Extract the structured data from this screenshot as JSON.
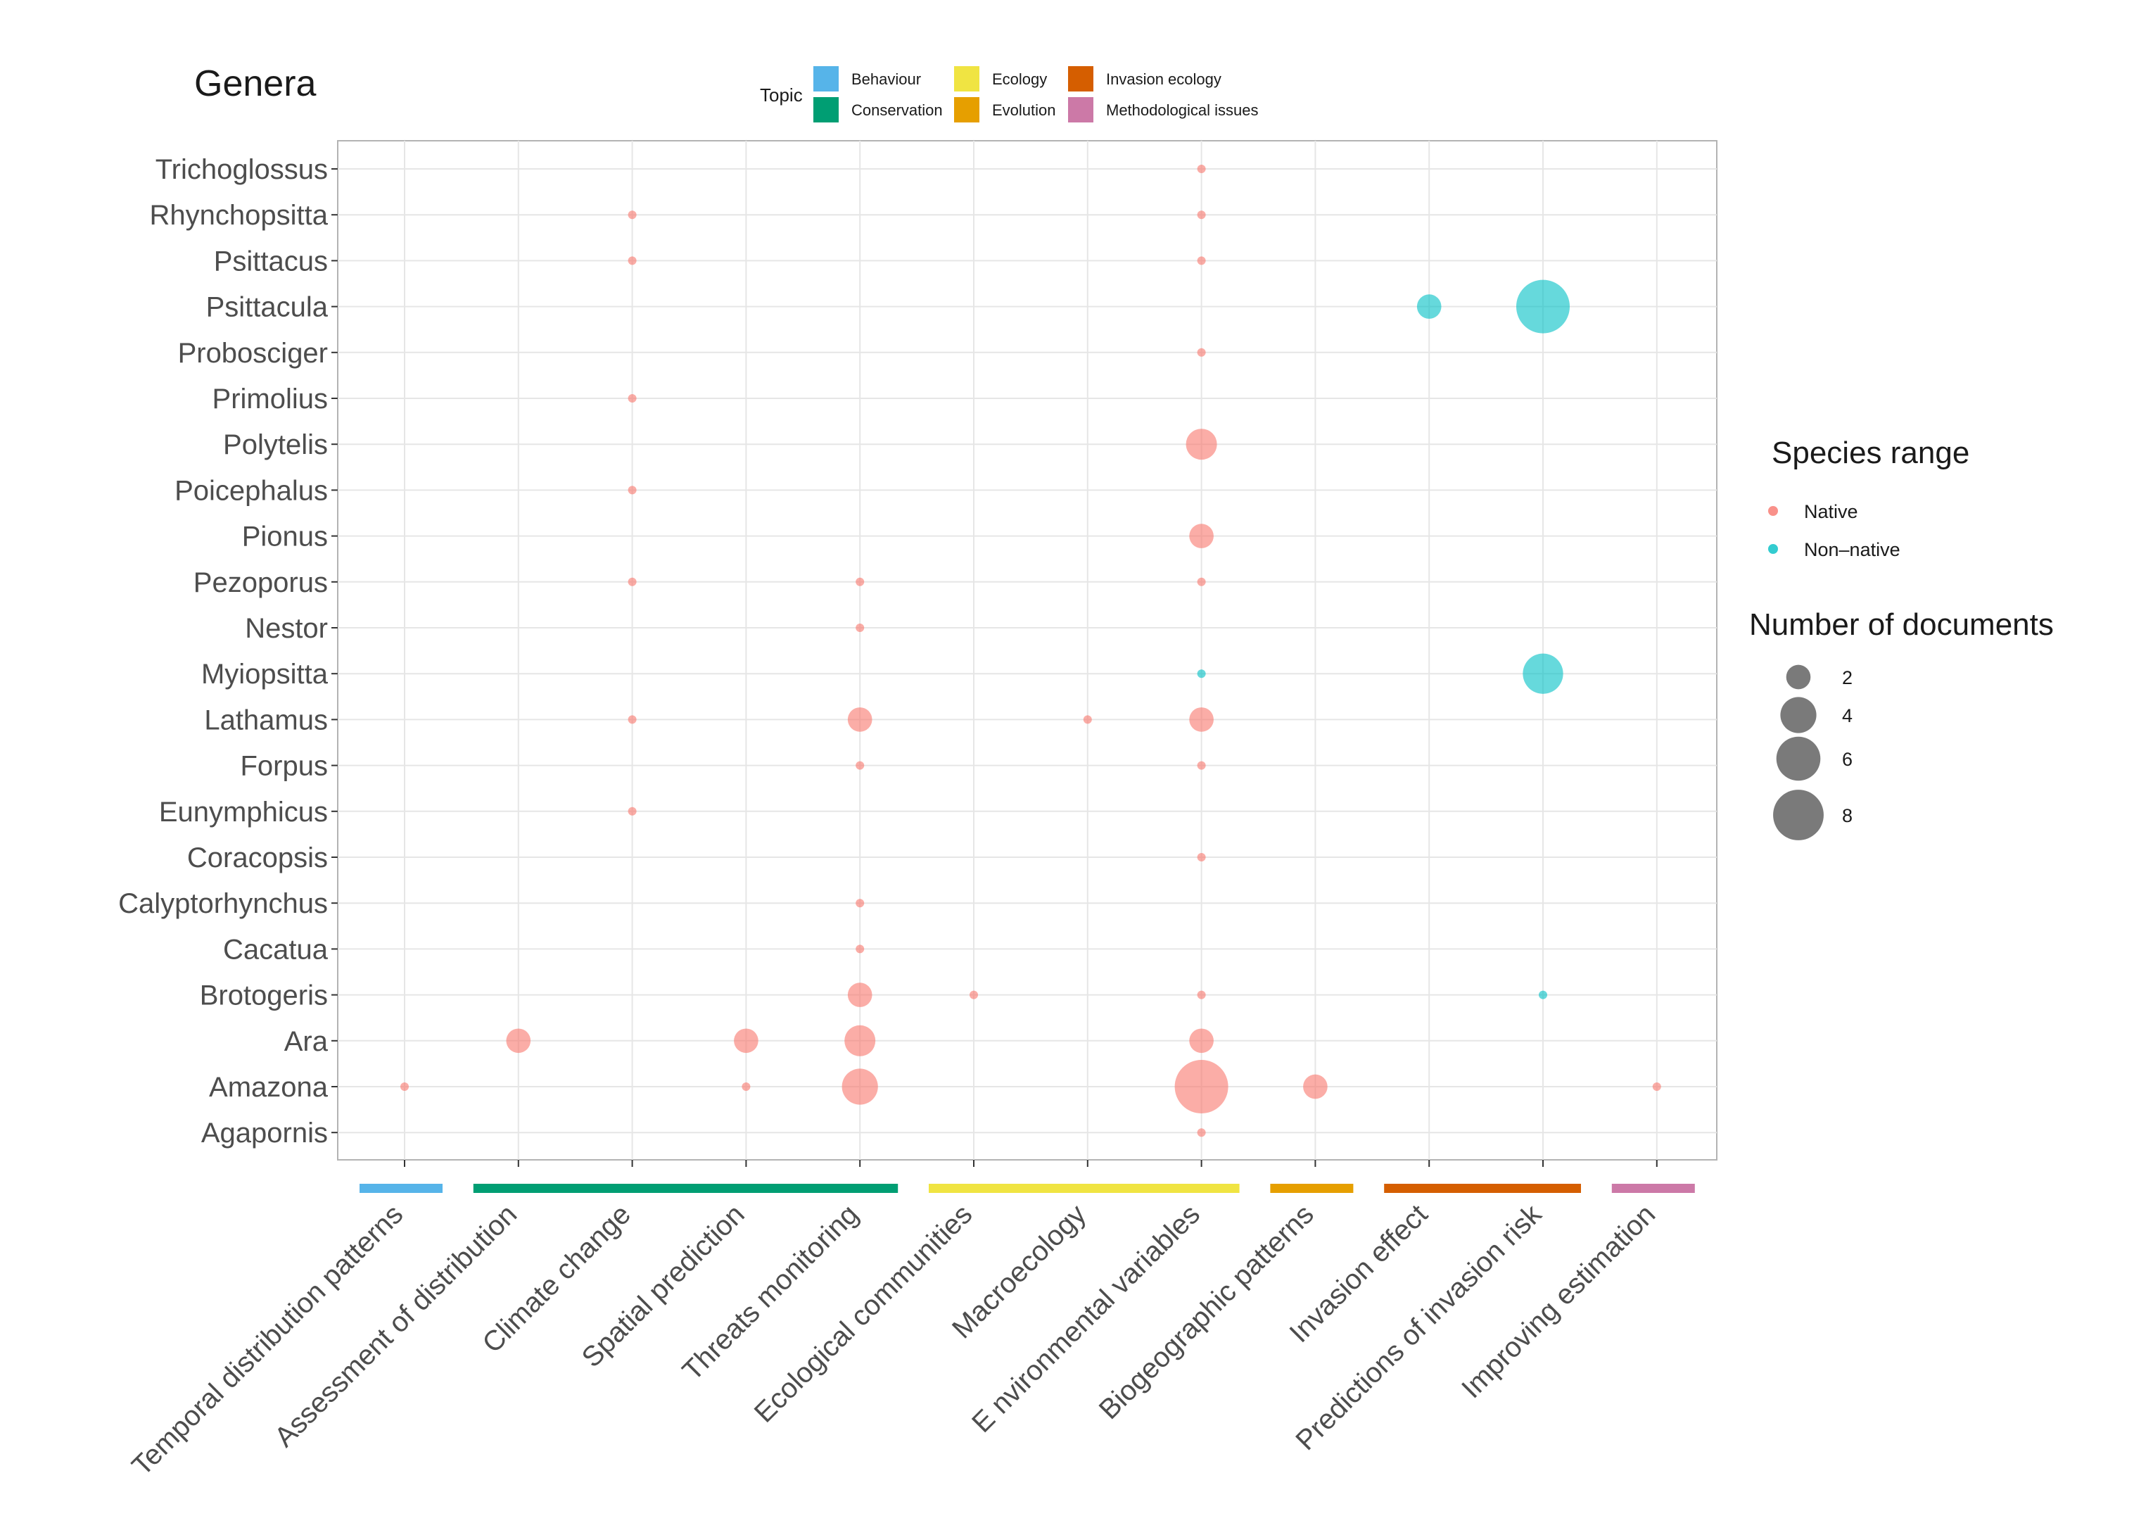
{
  "chart_data": {
    "type": "scatter",
    "y_title": "Genera",
    "genera": [
      "Trichoglossus",
      "Rhynchopsitta",
      "Psittacus",
      "Psittacula",
      "Probosciger",
      "Primolius",
      "Polytelis",
      "Poicephalus",
      "Pionus",
      "Pezoporus",
      "Nestor",
      "Myiopsitta",
      "Lathamus",
      "Forpus",
      "Eunymphicus",
      "Coracopsis",
      "Calyptorhynchus",
      "Cacatua",
      "Brotogeris",
      "Ara",
      "Amazona",
      "Agapornis"
    ],
    "categories": [
      "Temporal distribution patterns",
      "Assessment of distribution",
      "Climate change",
      "Spatial prediction",
      "Threats monitoring",
      "Ecological communities",
      "Macroecology",
      "Environmental variables",
      "Biogeographic patterns",
      "Invasion effect",
      "Predictions of invasion risk",
      "Improving estimation"
    ],
    "category_labels_display": [
      "Temporal distribution patterns",
      "Assessment of distribution",
      "Climate change",
      "Spatial prediction",
      "Threats monitoring",
      "Ecological communities",
      "Macroecology",
      "E nvironmental variables",
      "Biogeographic patterns",
      "Invasion effect",
      "Predictions of invasion risk",
      "Improving estimation"
    ],
    "topics": [
      {
        "name": "Behaviour",
        "color": "#56B4E9",
        "from": 0,
        "to": 0
      },
      {
        "name": "Conservation",
        "color": "#009E73",
        "from": 1,
        "to": 4
      },
      {
        "name": "Ecology",
        "color": "#F0E442",
        "from": 5,
        "to": 7
      },
      {
        "name": "Evolution",
        "color": "#E69F00",
        "from": 8,
        "to": 8
      },
      {
        "name": "Invasion ecology",
        "color": "#D55E00",
        "from": 9,
        "to": 10
      },
      {
        "name": "Methodological issues",
        "color": "#CC79A7",
        "from": 11,
        "to": 11
      }
    ],
    "topic_legend_title": "Topic",
    "topic_legend_order": [
      "Behaviour",
      "Ecology",
      "Invasion ecology",
      "Conservation",
      "Evolution",
      "Methodological issues"
    ],
    "range_legend": {
      "title": "Species range",
      "items": [
        {
          "label": "Native",
          "color": "#F8766D"
        },
        {
          "label": "Non–native",
          "color": "#00BFC4"
        }
      ]
    },
    "size_legend": {
      "title": "Number of documents",
      "values": [
        2,
        4,
        6,
        8
      ]
    },
    "points": [
      {
        "genus": "Trichoglossus",
        "category": "Environmental variables",
        "range": "Native",
        "count": 1
      },
      {
        "genus": "Rhynchopsitta",
        "category": "Climate change",
        "range": "Native",
        "count": 1
      },
      {
        "genus": "Rhynchopsitta",
        "category": "Environmental variables",
        "range": "Native",
        "count": 1
      },
      {
        "genus": "Psittacus",
        "category": "Climate change",
        "range": "Native",
        "count": 1
      },
      {
        "genus": "Psittacus",
        "category": "Environmental variables",
        "range": "Native",
        "count": 1
      },
      {
        "genus": "Psittacula",
        "category": "Invasion effect",
        "range": "Non-native",
        "count": 2
      },
      {
        "genus": "Psittacula",
        "category": "Predictions of invasion risk",
        "range": "Non-native",
        "count": 9
      },
      {
        "genus": "Probosciger",
        "category": "Environmental variables",
        "range": "Native",
        "count": 1
      },
      {
        "genus": "Primolius",
        "category": "Climate change",
        "range": "Native",
        "count": 1
      },
      {
        "genus": "Polytelis",
        "category": "Environmental variables",
        "range": "Native",
        "count": 3
      },
      {
        "genus": "Poicephalus",
        "category": "Climate change",
        "range": "Native",
        "count": 1
      },
      {
        "genus": "Pionus",
        "category": "Environmental variables",
        "range": "Native",
        "count": 2
      },
      {
        "genus": "Pezoporus",
        "category": "Climate change",
        "range": "Native",
        "count": 1
      },
      {
        "genus": "Pezoporus",
        "category": "Threats monitoring",
        "range": "Native",
        "count": 1
      },
      {
        "genus": "Pezoporus",
        "category": "Environmental variables",
        "range": "Native",
        "count": 1
      },
      {
        "genus": "Nestor",
        "category": "Threats monitoring",
        "range": "Native",
        "count": 1
      },
      {
        "genus": "Myiopsitta",
        "category": "Environmental variables",
        "range": "Non-native",
        "count": 1
      },
      {
        "genus": "Myiopsitta",
        "category": "Predictions of invasion risk",
        "range": "Non-native",
        "count": 5
      },
      {
        "genus": "Lathamus",
        "category": "Climate change",
        "range": "Native",
        "count": 1
      },
      {
        "genus": "Lathamus",
        "category": "Threats monitoring",
        "range": "Native",
        "count": 2
      },
      {
        "genus": "Lathamus",
        "category": "Macroecology",
        "range": "Native",
        "count": 1
      },
      {
        "genus": "Lathamus",
        "category": "Environmental variables",
        "range": "Native",
        "count": 2
      },
      {
        "genus": "Forpus",
        "category": "Threats monitoring",
        "range": "Native",
        "count": 1
      },
      {
        "genus": "Forpus",
        "category": "Environmental variables",
        "range": "Native",
        "count": 1
      },
      {
        "genus": "Eunymphicus",
        "category": "Climate change",
        "range": "Native",
        "count": 1
      },
      {
        "genus": "Coracopsis",
        "category": "Environmental variables",
        "range": "Native",
        "count": 1
      },
      {
        "genus": "Calyptorhynchus",
        "category": "Threats monitoring",
        "range": "Native",
        "count": 1
      },
      {
        "genus": "Cacatua",
        "category": "Threats monitoring",
        "range": "Native",
        "count": 1
      },
      {
        "genus": "Brotogeris",
        "category": "Threats monitoring",
        "range": "Native",
        "count": 2
      },
      {
        "genus": "Brotogeris",
        "category": "Ecological communities",
        "range": "Native",
        "count": 1
      },
      {
        "genus": "Brotogeris",
        "category": "Environmental variables",
        "range": "Native",
        "count": 1
      },
      {
        "genus": "Brotogeris",
        "category": "Predictions of invasion risk",
        "range": "Non-native",
        "count": 1
      },
      {
        "genus": "Ara",
        "category": "Assessment of distribution",
        "range": "Native",
        "count": 2
      },
      {
        "genus": "Ara",
        "category": "Spatial prediction",
        "range": "Native",
        "count": 2
      },
      {
        "genus": "Ara",
        "category": "Threats monitoring",
        "range": "Native",
        "count": 3
      },
      {
        "genus": "Ara",
        "category": "Environmental variables",
        "range": "Native",
        "count": 2
      },
      {
        "genus": "Amazona",
        "category": "Temporal distribution patterns",
        "range": "Native",
        "count": 1
      },
      {
        "genus": "Amazona",
        "category": "Spatial prediction",
        "range": "Native",
        "count": 1
      },
      {
        "genus": "Amazona",
        "category": "Threats monitoring",
        "range": "Native",
        "count": 4
      },
      {
        "genus": "Amazona",
        "category": "Environmental variables",
        "range": "Native",
        "count": 9
      },
      {
        "genus": "Amazona",
        "category": "Biogeographic patterns",
        "range": "Native",
        "count": 2
      },
      {
        "genus": "Amazona",
        "category": "Improving estimation",
        "range": "Native",
        "count": 1
      },
      {
        "genus": "Agapornis",
        "category": "Environmental variables",
        "range": "Native",
        "count": 1
      }
    ]
  }
}
